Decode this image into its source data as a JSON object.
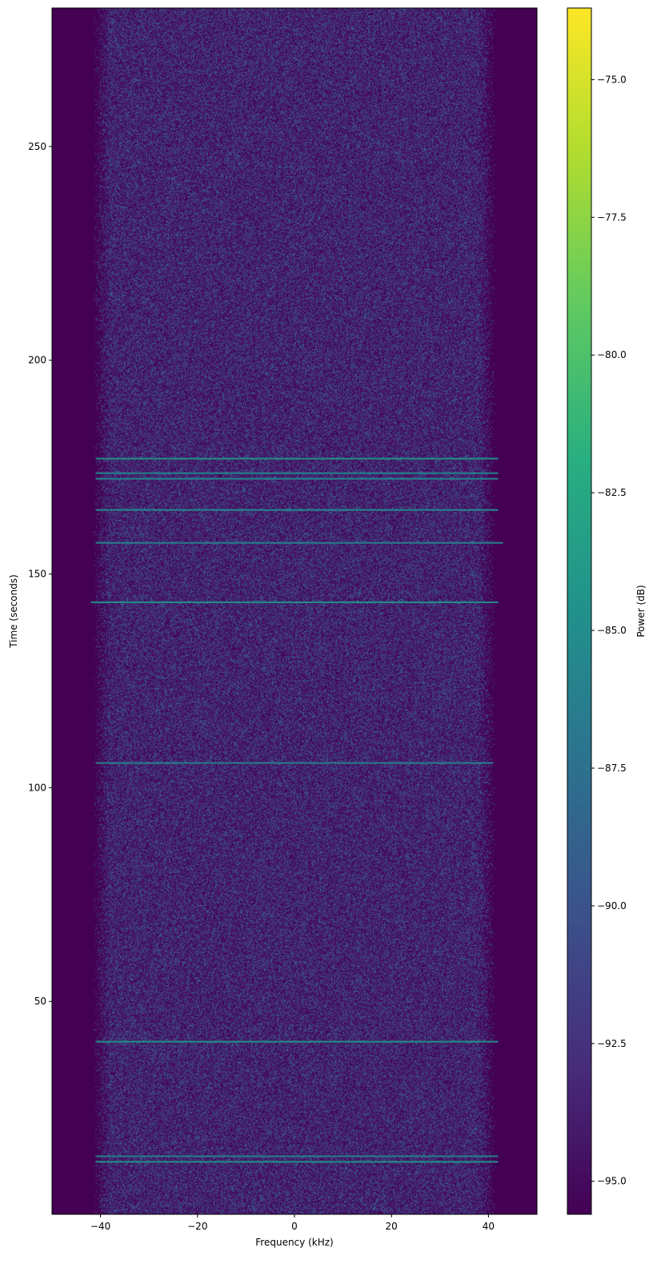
{
  "chart_data": {
    "type": "heatmap",
    "subtype": "spectrogram",
    "title": "",
    "xlabel": "Frequency (kHz)",
    "ylabel": "Time (seconds)",
    "xlim": [
      -50,
      50
    ],
    "ylim": [
      0.2,
      282.4
    ],
    "xticks": [
      -40,
      -20,
      0,
      20,
      40
    ],
    "xtick_labels": [
      "−40",
      "−20",
      "0",
      "20",
      "40"
    ],
    "yticks": [
      50,
      100,
      150,
      200,
      250
    ],
    "ytick_labels": [
      "50",
      "100",
      "150",
      "200",
      "250"
    ],
    "noise_band_khz": [
      -38,
      38
    ],
    "noise_power_db_range": [
      -95.6,
      -88
    ],
    "background_power_db": -95.6,
    "bursts": [
      {
        "time_s": 177.0,
        "freq_range_khz": [
          -41,
          42
        ],
        "power_db": -84.5
      },
      {
        "time_s": 173.6,
        "freq_range_khz": [
          -41,
          42
        ],
        "power_db": -85.5
      },
      {
        "time_s": 172.3,
        "freq_range_khz": [
          -41,
          42
        ],
        "power_db": -85.5
      },
      {
        "time_s": 165.0,
        "freq_range_khz": [
          -41,
          42
        ],
        "power_db": -85
      },
      {
        "time_s": 157.3,
        "freq_range_khz": [
          -41,
          43
        ],
        "power_db": -86
      },
      {
        "time_s": 143.4,
        "freq_range_khz": [
          -42,
          42
        ],
        "power_db": -84.5
      },
      {
        "time_s": 105.8,
        "freq_range_khz": [
          -41,
          41
        ],
        "power_db": -86
      },
      {
        "time_s": 40.6,
        "freq_range_khz": [
          -41,
          42
        ],
        "power_db": -84.5
      },
      {
        "time_s": 13.8,
        "freq_range_khz": [
          -41,
          42
        ],
        "power_db": -86
      },
      {
        "time_s": 12.5,
        "freq_range_khz": [
          -41,
          42
        ],
        "power_db": -84.5
      }
    ],
    "colorbar": {
      "label": "Power (dB)",
      "colormap": "viridis",
      "range": [
        -95.6,
        -73.7
      ],
      "ticks": [
        -95.0,
        -92.5,
        -90.0,
        -87.5,
        -85.0,
        -82.5,
        -80.0,
        -77.5,
        -75.0
      ],
      "tick_labels": [
        "−95.0",
        "−92.5",
        "−90.0",
        "−87.5",
        "−85.0",
        "−82.5",
        "−80.0",
        "−77.5",
        "−75.0"
      ]
    },
    "grid": false
  }
}
